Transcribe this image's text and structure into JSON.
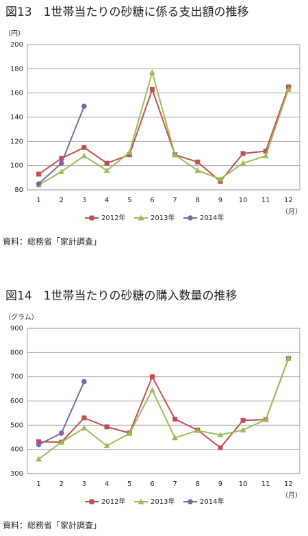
{
  "chart_data": [
    {
      "type": "line",
      "title": "図13　1世帯当たりの砂糖に係る支出額の推移",
      "y_label": "（円）",
      "x_label": "（月）",
      "note": "資料：総務省「家計調査」",
      "categories": [
        "1",
        "2",
        "3",
        "4",
        "5",
        "6",
        "7",
        "8",
        "9",
        "10",
        "11",
        "12"
      ],
      "ylim": [
        80,
        200
      ],
      "yticks": [
        80,
        100,
        120,
        140,
        160,
        180,
        200
      ],
      "grid": true,
      "legend": "bottom",
      "series": [
        {
          "name": "2012年",
          "color": "#c0504d",
          "marker": "square",
          "values": [
            93,
            106,
            115,
            102,
            109,
            163,
            109,
            103,
            87,
            110,
            112,
            165
          ]
        },
        {
          "name": "2013年",
          "color": "#9bbb59",
          "marker": "triangle",
          "values": [
            84,
            95,
            108,
            96,
            111,
            177,
            109,
            96,
            89,
            102,
            108,
            163
          ]
        },
        {
          "name": "2014年",
          "color": "#8064a2",
          "marker": "circle",
          "values": [
            85,
            102,
            149,
            null,
            null,
            null,
            null,
            null,
            null,
            null,
            null,
            null
          ]
        }
      ]
    },
    {
      "type": "line",
      "title": "図14　1世帯当たりの砂糖の購入数量の推移",
      "y_label": "（グラム）",
      "x_label": "（月）",
      "note": "資料：総務省「家計調査」",
      "categories": [
        "1",
        "2",
        "3",
        "4",
        "5",
        "6",
        "7",
        "8",
        "9",
        "10",
        "11",
        "12"
      ],
      "ylim": [
        300,
        900
      ],
      "yticks": [
        300,
        400,
        500,
        600,
        700,
        800,
        900
      ],
      "grid": true,
      "legend": "bottom",
      "series": [
        {
          "name": "2012年",
          "color": "#c0504d",
          "marker": "square",
          "values": [
            432,
            430,
            530,
            493,
            468,
            700,
            525,
            480,
            407,
            520,
            523,
            775
          ]
        },
        {
          "name": "2013年",
          "color": "#9bbb59",
          "marker": "triangle",
          "values": [
            360,
            430,
            488,
            415,
            466,
            645,
            448,
            478,
            460,
            480,
            523,
            775
          ]
        },
        {
          "name": "2014年",
          "color": "#8064a2",
          "marker": "circle",
          "values": [
            420,
            467,
            680,
            null,
            null,
            null,
            null,
            null,
            null,
            null,
            null,
            null
          ]
        }
      ]
    }
  ]
}
